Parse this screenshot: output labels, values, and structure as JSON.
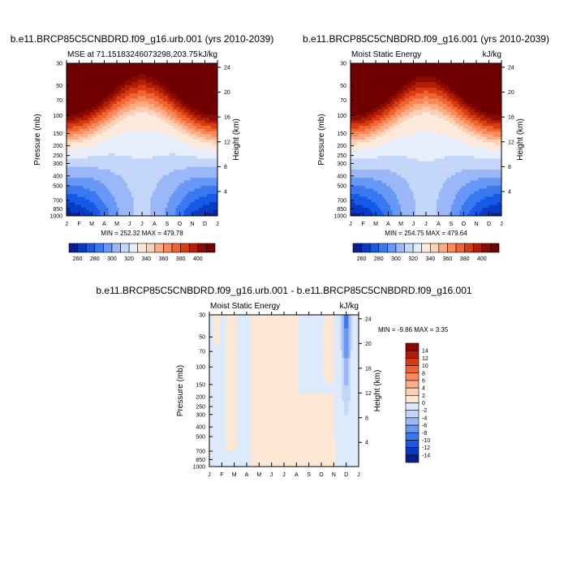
{
  "chart_data": [
    {
      "type": "filled-contour",
      "title": "b.e11.BRCP85C5CNBDRD.f09_g16.urb.001 (yrs 2010-2039)",
      "left_string": "MSE at 71.15183246073298,203.75",
      "right_string": "kJ/kg",
      "xlabel": "",
      "ylabel": "Pressure (mb)",
      "y2label": "Height (km)",
      "x_ticks": [
        "J",
        "F",
        "M",
        "A",
        "M",
        "J",
        "J",
        "A",
        "S",
        "O",
        "N",
        "D",
        "J"
      ],
      "pressure_ticks": [
        "30",
        "50",
        "70",
        "100",
        "150",
        "200",
        "250",
        "300",
        "400",
        "500",
        "700",
        "850",
        "1000"
      ],
      "height_ticks": [
        "4",
        "8",
        "12",
        "16",
        "20",
        "24"
      ],
      "min": 252.32,
      "max": 479.78,
      "stats_text": "MIN = 252.32 MAX = 479.78",
      "colorbar_labels": [
        "260",
        "280",
        "300",
        "320",
        "340",
        "360",
        "380",
        "400"
      ],
      "colorbar_orientation": "horizontal"
    },
    {
      "type": "filled-contour",
      "title": "b.e11.BRCP85C5CNBDRD.f09_g16.001 (yrs 2010-2039)",
      "left_string": "Moist Static Energy",
      "right_string": "kJ/kg",
      "xlabel": "",
      "ylabel": "Pressure (mb)",
      "y2label": "Height (km)",
      "x_ticks": [
        "J",
        "F",
        "M",
        "A",
        "M",
        "J",
        "J",
        "A",
        "S",
        "O",
        "N",
        "D",
        "J"
      ],
      "pressure_ticks": [
        "30",
        "50",
        "70",
        "100",
        "150",
        "200",
        "250",
        "300",
        "400",
        "500",
        "700",
        "850",
        "1000"
      ],
      "height_ticks": [
        "4",
        "8",
        "12",
        "16",
        "20",
        "24"
      ],
      "min": 254.75,
      "max": 479.64,
      "stats_text": "MIN = 254.75 MAX = 479.64",
      "colorbar_labels": [
        "260",
        "280",
        "300",
        "320",
        "340",
        "360",
        "380",
        "400"
      ],
      "colorbar_orientation": "horizontal"
    },
    {
      "type": "filled-contour",
      "title": "b.e11.BRCP85C5CNBDRD.f09_g16.urb.001 - b.e11.BRCP85C5CNBDRD.f09_g16.001",
      "left_string": "Moist Static Energy",
      "right_string": "kJ/kg",
      "xlabel": "",
      "ylabel": "Pressure (mb)",
      "y2label": "Height (km)",
      "x_ticks": [
        "J",
        "F",
        "M",
        "A",
        "M",
        "J",
        "J",
        "A",
        "S",
        "O",
        "N",
        "D",
        "J"
      ],
      "pressure_ticks": [
        "30",
        "50",
        "70",
        "100",
        "150",
        "200",
        "250",
        "300",
        "400",
        "500",
        "700",
        "850",
        "1000"
      ],
      "height_ticks": [
        "4",
        "8",
        "12",
        "16",
        "20",
        "24"
      ],
      "min": -9.86,
      "max": 3.35,
      "stats_text": "MIN =  -9.86 MAX =   3.35",
      "colorbar_labels": [
        "14",
        "12",
        "10",
        "8",
        "6",
        "4",
        "2",
        "0",
        "-2",
        "-4",
        "-6",
        "-8",
        "-10",
        "-12",
        "-14"
      ],
      "colorbar_orientation": "vertical"
    }
  ],
  "abs_palette": [
    "#08208f",
    "#0a3ac4",
    "#1658e8",
    "#3a78f2",
    "#6898f6",
    "#9ab8f8",
    "#c4d6fa",
    "#e6eefc",
    "#fde8dc",
    "#fcd0b4",
    "#fbae86",
    "#f88a5a",
    "#f06432",
    "#d63c12",
    "#b01e06",
    "#8a0a00",
    "#700000"
  ],
  "diff_palette": [
    "#08208f",
    "#0a3ac4",
    "#1a58e0",
    "#3a78ec",
    "#6a98f0",
    "#9ab8f4",
    "#c4d6f8",
    "#ddeafb",
    "#fde8d6",
    "#fcd0b0",
    "#fbae88",
    "#f88a5c",
    "#ef6232",
    "#d63c12",
    "#b01e06",
    "#8a0a00"
  ]
}
